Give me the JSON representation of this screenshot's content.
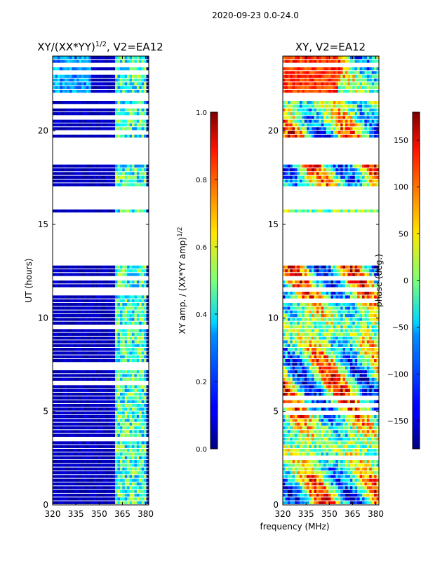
{
  "suptitle": "2020-09-23 0.0-24.0",
  "common_xlabel": "frequency (MHz)",
  "chart_data": [
    {
      "type": "heatmap",
      "id": "amp",
      "title_main": "XY/(XX*YY)",
      "title_sup": "1/2",
      "title_tail": ", V2=EA12",
      "ylabel": "UT (hours)",
      "xlim": [
        320,
        382
      ],
      "ylim": [
        0,
        24
      ],
      "xticks": [
        320,
        335,
        350,
        365,
        380
      ],
      "yticks": [
        0,
        5,
        10,
        15,
        20
      ],
      "colorbar": {
        "label_main": "XY amp. / (XX*YY amp)",
        "label_sup": "1/2",
        "range": [
          0.0,
          1.0
        ],
        "ticks": [
          0.0,
          0.2,
          0.4,
          0.6,
          0.8,
          1.0
        ],
        "tick_labels": [
          "0.0",
          "0.2",
          "0.4",
          "0.6",
          "0.8",
          "1.0"
        ],
        "colormap": "jet"
      },
      "data_gaps_hours": [
        [
          12.8,
          15.6
        ],
        [
          15.85,
          17.0
        ],
        [
          18.2,
          19.5
        ],
        [
          21.6,
          22.0
        ]
      ],
      "active_band_mhz": [
        361,
        381
      ]
    },
    {
      "type": "heatmap",
      "id": "phase",
      "title_main": "XY, V2=EA12",
      "xlim": [
        320,
        382
      ],
      "ylim": [
        0,
        24
      ],
      "xticks": [
        320,
        335,
        350,
        365,
        380
      ],
      "yticks": [
        0,
        5,
        10,
        15,
        20
      ],
      "colorbar": {
        "label_main": "phase (deg.)",
        "range": [
          -180,
          180
        ],
        "ticks": [
          150,
          100,
          50,
          0,
          -50,
          -100,
          -150
        ],
        "tick_labels": [
          "150",
          "100",
          "50",
          "0",
          "−50",
          "−100",
          "−150"
        ],
        "colormap": "jet"
      },
      "data_gaps_hours": [
        [
          12.8,
          15.6
        ],
        [
          15.85,
          17.0
        ],
        [
          18.2,
          19.5
        ],
        [
          21.6,
          22.0
        ]
      ]
    }
  ]
}
